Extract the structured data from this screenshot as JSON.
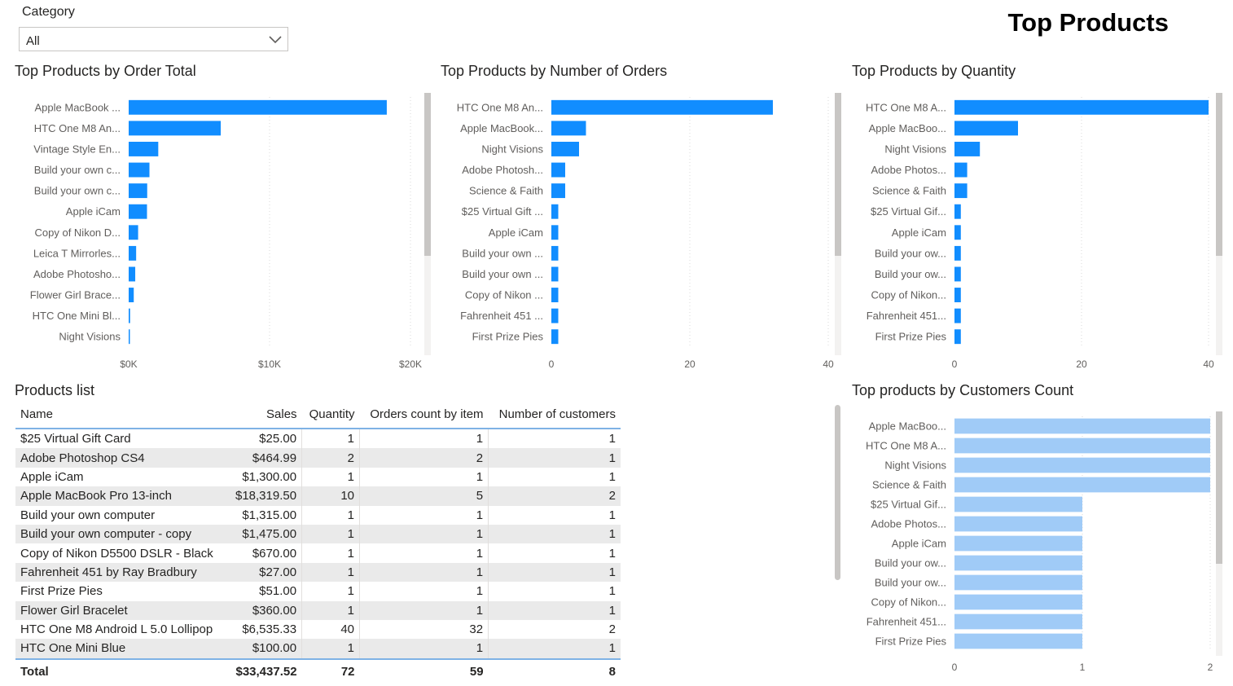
{
  "filter": {
    "label": "Category",
    "value": "All"
  },
  "page_title": "Top Products",
  "chart_data": [
    {
      "id": "order-total",
      "type": "bar",
      "orientation": "horizontal",
      "title": "Top Products by Order Total",
      "categories": [
        "Apple MacBook ...",
        "HTC One M8 An...",
        "Vintage Style En...",
        "Build your own c...",
        "Build your own c...",
        "Apple iCam",
        "Copy of Nikon D...",
        "Leica T Mirrorles...",
        "Adobe Photosho...",
        "Flower Girl Brace...",
        "HTC One Mini Bl...",
        "Night Visions"
      ],
      "values": [
        18319.5,
        6535.33,
        2100,
        1475,
        1315,
        1300,
        670,
        530,
        464.99,
        360,
        100,
        60
      ],
      "xlim": [
        0,
        20000
      ],
      "ticks": [
        {
          "value": 0,
          "label": "$0K"
        },
        {
          "value": 10000,
          "label": "$10K"
        },
        {
          "value": 20000,
          "label": "$20K"
        }
      ],
      "grid": true,
      "color": "#118dff"
    },
    {
      "id": "num-orders",
      "type": "bar",
      "orientation": "horizontal",
      "title": "Top Products by Number of Orders",
      "categories": [
        "HTC One M8 An...",
        "Apple MacBook...",
        "Night Visions",
        "Adobe Photosh...",
        "Science & Faith",
        "$25 Virtual Gift ...",
        "Apple iCam",
        "Build your own ...",
        "Build your own ...",
        "Copy of Nikon ...",
        "Fahrenheit 451 ...",
        "First Prize Pies"
      ],
      "values": [
        32,
        5,
        4,
        2,
        2,
        1,
        1,
        1,
        1,
        1,
        1,
        1
      ],
      "xlim": [
        0,
        40
      ],
      "ticks": [
        {
          "value": 0,
          "label": "0"
        },
        {
          "value": 20,
          "label": "20"
        },
        {
          "value": 40,
          "label": "40"
        }
      ],
      "grid": true,
      "color": "#118dff"
    },
    {
      "id": "quantity",
      "type": "bar",
      "orientation": "horizontal",
      "title": "Top Products by Quantity",
      "categories": [
        "HTC One M8 A...",
        "Apple MacBoo...",
        "Night Visions",
        "Adobe Photos...",
        "Science & Faith",
        "$25 Virtual Gif...",
        "Apple iCam",
        "Build your ow...",
        "Build your ow...",
        "Copy of Nikon...",
        "Fahrenheit 451...",
        "First Prize Pies"
      ],
      "values": [
        40,
        10,
        4,
        2,
        2,
        1,
        1,
        1,
        1,
        1,
        1,
        1
      ],
      "xlim": [
        0,
        40
      ],
      "ticks": [
        {
          "value": 0,
          "label": "0"
        },
        {
          "value": 20,
          "label": "20"
        },
        {
          "value": 40,
          "label": "40"
        }
      ],
      "grid": true,
      "color": "#118dff"
    },
    {
      "id": "customers",
      "type": "bar",
      "orientation": "horizontal",
      "title": "Top products by Customers Count",
      "categories": [
        "Apple MacBoo...",
        "HTC One M8 A...",
        "Night Visions",
        "Science & Faith",
        "$25 Virtual Gif...",
        "Adobe Photos...",
        "Apple iCam",
        "Build your ow...",
        "Build your ow...",
        "Copy of Nikon...",
        "Fahrenheit 451...",
        "First Prize Pies"
      ],
      "values": [
        2,
        2,
        2,
        2,
        1,
        1,
        1,
        1,
        1,
        1,
        1,
        1
      ],
      "xlim": [
        0,
        2
      ],
      "ticks": [
        {
          "value": 0,
          "label": "0"
        },
        {
          "value": 1,
          "label": "1"
        },
        {
          "value": 2,
          "label": "2"
        }
      ],
      "grid": true,
      "color": "#a0cbf7"
    },
    {
      "id": "products-list",
      "type": "table",
      "title": "Products list",
      "columns": [
        "Name",
        "Sales",
        "Quantity",
        "Orders count by item",
        "Number of customers"
      ],
      "rows": [
        [
          "$25 Virtual Gift Card",
          "$25.00",
          "1",
          "1",
          "1"
        ],
        [
          "Adobe Photoshop CS4",
          "$464.99",
          "2",
          "2",
          "1"
        ],
        [
          "Apple iCam",
          "$1,300.00",
          "1",
          "1",
          "1"
        ],
        [
          "Apple MacBook Pro 13-inch",
          "$18,319.50",
          "10",
          "5",
          "2"
        ],
        [
          "Build your own computer",
          "$1,315.00",
          "1",
          "1",
          "1"
        ],
        [
          "Build your own computer - copy",
          "$1,475.00",
          "1",
          "1",
          "1"
        ],
        [
          "Copy of Nikon D5500 DSLR - Black",
          "$670.00",
          "1",
          "1",
          "1"
        ],
        [
          "Fahrenheit 451 by Ray Bradbury",
          "$27.00",
          "1",
          "1",
          "1"
        ],
        [
          "First Prize Pies",
          "$51.00",
          "1",
          "1",
          "1"
        ],
        [
          "Flower Girl Bracelet",
          "$360.00",
          "1",
          "1",
          "1"
        ],
        [
          "HTC One M8 Android L 5.0 Lollipop",
          "$6,535.33",
          "40",
          "32",
          "2"
        ],
        [
          "HTC One Mini Blue",
          "$100.00",
          "1",
          "1",
          "1"
        ]
      ],
      "total": [
        "Total",
        "$33,437.52",
        "72",
        "59",
        "8"
      ]
    }
  ]
}
